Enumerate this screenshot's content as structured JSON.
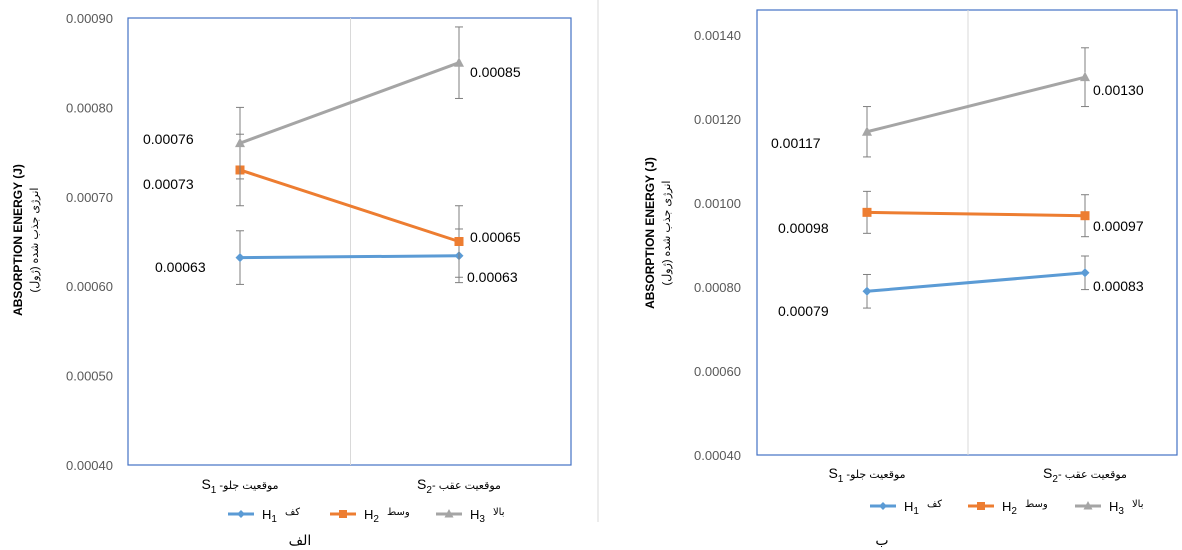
{
  "chart_data": [
    {
      "type": "line",
      "panel_label": "الف",
      "categories": [
        "S1 - موقعیت جلو",
        "S2 - موقعیت عقب"
      ],
      "category_parts": [
        {
          "main": "S",
          "sub": "1",
          "rest": " -موقعیت جلو"
        },
        {
          "main": "S",
          "sub": "2",
          "rest": "- موقعیت عقب"
        }
      ],
      "ylabel": "ABSORPTION ENERGY (J)",
      "ylabel_fa": "انرژی جذب شده (ژول)",
      "ylim": [
        0.0004,
        0.0009
      ],
      "yticks": [
        "0.00040",
        "0.00050",
        "0.00060",
        "0.00070",
        "0.00080",
        "0.00090"
      ],
      "series": [
        {
          "name": "H1 کف",
          "name_main": "H",
          "name_sub": "1",
          "name_fa": "کف",
          "color": "#5B9BD5",
          "marker": "diamond",
          "values": [
            0.000632,
            0.000634
          ],
          "errors": [
            3e-05,
            3e-05
          ],
          "labels": [
            "0.00063",
            "0.00063"
          ]
        },
        {
          "name": "H2 وسط",
          "name_main": "H",
          "name_sub": "2",
          "name_fa": "وسط",
          "color": "#ED7D31",
          "marker": "square",
          "values": [
            0.00073,
            0.00065
          ],
          "errors": [
            4e-05,
            4e-05
          ],
          "labels": [
            "0.00073",
            "0.00065"
          ]
        },
        {
          "name": "H3 بالا",
          "name_main": "H",
          "name_sub": "3",
          "name_fa": "بالا",
          "color": "#A5A5A5",
          "marker": "triangle",
          "values": [
            0.00076,
            0.00085
          ],
          "errors": [
            4e-05,
            4e-05
          ],
          "labels": [
            "0.00076",
            "0.00085"
          ]
        }
      ]
    },
    {
      "type": "line",
      "panel_label": "ب",
      "categories": [
        "S1 - موقعیت جلو",
        "S2 - موقعیت عقب"
      ],
      "category_parts": [
        {
          "main": "S",
          "sub": "1",
          "rest": " -موقعیت جلو"
        },
        {
          "main": "S",
          "sub": "2",
          "rest": "- موقعیت عقب"
        }
      ],
      "ylabel": "ABSORPTION ENERGY (J)",
      "ylabel_fa": "انرژی جذب شده (ژول)",
      "ylim": [
        0.0004,
        0.00146
      ],
      "yticks": [
        "0.00040",
        "0.00060",
        "0.00080",
        "0.00100",
        "0.00120",
        "0.00140"
      ],
      "series": [
        {
          "name": "H1 کف",
          "name_main": "H",
          "name_sub": "1",
          "name_fa": "کف",
          "color": "#5B9BD5",
          "marker": "diamond",
          "values": [
            0.00079,
            0.000834
          ],
          "errors": [
            4e-05,
            4e-05
          ],
          "labels": [
            "0.00079",
            "0.00083"
          ]
        },
        {
          "name": "H2 وسط",
          "name_main": "H",
          "name_sub": "2",
          "name_fa": "وسط",
          "color": "#ED7D31",
          "marker": "square",
          "values": [
            0.000978,
            0.00097
          ],
          "errors": [
            5e-05,
            5e-05
          ],
          "labels": [
            "0.00098",
            "0.00097"
          ]
        },
        {
          "name": "H3 بالا",
          "name_main": "H",
          "name_sub": "3",
          "name_fa": "بالا",
          "color": "#A5A5A5",
          "marker": "triangle",
          "values": [
            0.00117,
            0.0013
          ],
          "errors": [
            6e-05,
            7e-05
          ],
          "labels": [
            "0.00117",
            "0.00130"
          ]
        }
      ]
    }
  ]
}
